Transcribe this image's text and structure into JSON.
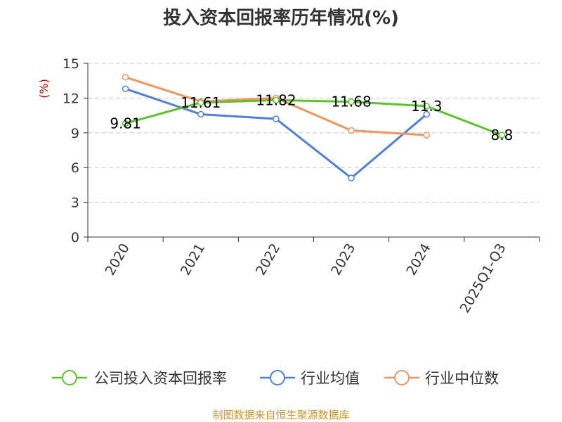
{
  "chart_data": {
    "type": "line",
    "title": "投入资本回报率历年情况(%)",
    "ylabel": "(%)",
    "xlabel": "",
    "categories": [
      "2020",
      "2021",
      "2022",
      "2023",
      "2024",
      "2025Q1-Q3"
    ],
    "ylim": [
      0,
      15
    ],
    "yticks": [
      0,
      3,
      6,
      9,
      12,
      15
    ],
    "grid": true,
    "legend_position": "bottom",
    "series": [
      {
        "name": "公司投入资本回报率",
        "color": "#5cc22c",
        "values": [
          9.81,
          11.61,
          11.82,
          11.68,
          11.3,
          8.8
        ],
        "labels": [
          "9.81",
          "11.61",
          "11.82",
          "11.68",
          "11.3",
          "8.8"
        ]
      },
      {
        "name": "行业均值",
        "color": "#4e7fdc",
        "values": [
          12.8,
          10.6,
          10.2,
          5.1,
          10.6,
          null
        ]
      },
      {
        "name": "行业中位数",
        "color": "#f5935c",
        "values": [
          13.8,
          11.7,
          12.0,
          9.2,
          8.8,
          null
        ]
      }
    ]
  },
  "footer": {
    "source": "制图数据来自恒生聚源数据库"
  }
}
